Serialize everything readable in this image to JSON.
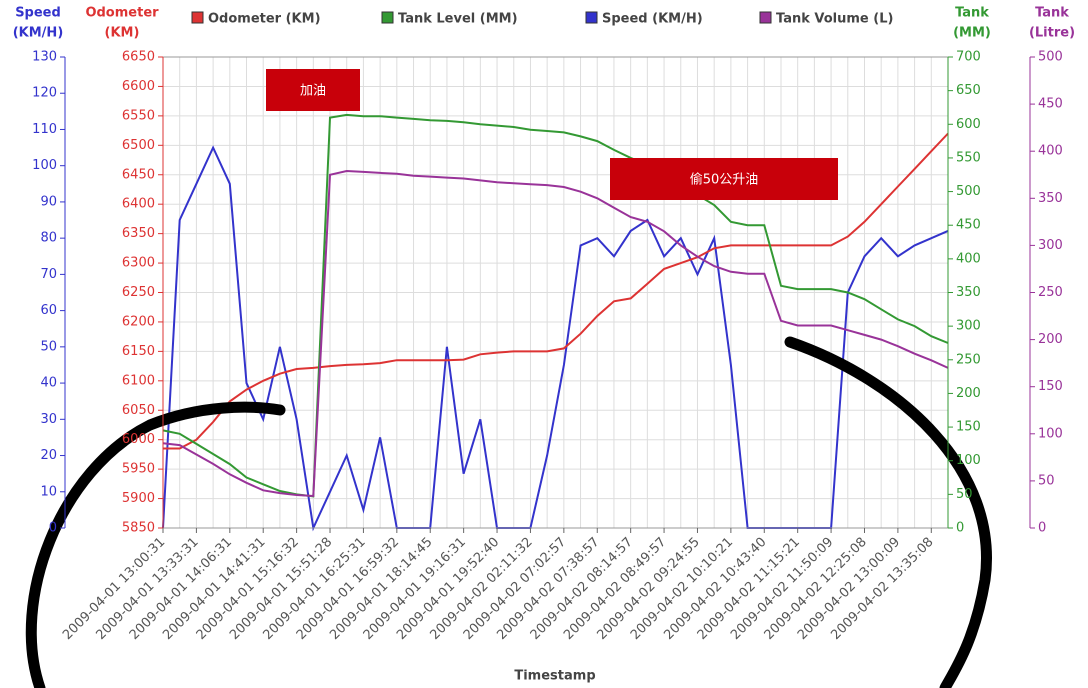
{
  "chart_data": {
    "type": "line",
    "x_label": "Timestamp",
    "grid": true,
    "categories": [
      "2009-04-01 13:00:31",
      null,
      "2009-04-01 13:33:31",
      null,
      "2009-04-01 14:06:31",
      null,
      "2009-04-01 14:41:31",
      null,
      "2009-04-01 15:16:32",
      null,
      "2009-04-01 15:51:28",
      null,
      "2009-04-01 16:25:31",
      null,
      "2009-04-01 16:59:32",
      null,
      "2009-04-01 18:14:45",
      null,
      "2009-04-01 19:16:31",
      null,
      "2009-04-01 19:52:40",
      null,
      "2009-04-02 02:11:32",
      null,
      "2009-04-02 07:02:57",
      null,
      "2009-04-02 07:38:57",
      null,
      "2009-04-02 08:14:57",
      null,
      "2009-04-02 08:49:57",
      null,
      "2009-04-02 09:24:55",
      null,
      "2009-04-02 10:10:21",
      null,
      "2009-04-02 10:43:40",
      null,
      "2009-04-02 11:15:21",
      null,
      "2009-04-02 11:50:09",
      null,
      "2009-04-02 12:25:08",
      null,
      "2009-04-02 13:00:09",
      null,
      "2009-04-02 13:35:08",
      null
    ],
    "axes": [
      {
        "title": [
          "Speed",
          "(KM/H)"
        ],
        "color": "#3333cc",
        "side": "left",
        "lim": [
          0,
          130
        ],
        "ticks": [
          0,
          10,
          20,
          30,
          40,
          50,
          60,
          70,
          80,
          90,
          100,
          110,
          120,
          130
        ]
      },
      {
        "title": [
          "Odometer",
          "(KM)"
        ],
        "color": "#dd3333",
        "side": "left",
        "lim": [
          5850,
          6650
        ],
        "ticks": [
          5850,
          5900,
          5950,
          6000,
          6050,
          6100,
          6150,
          6200,
          6250,
          6300,
          6350,
          6400,
          6450,
          6500,
          6550,
          6600,
          6650
        ]
      },
      {
        "title": [
          "Tank",
          "(MM)"
        ],
        "color": "#339933",
        "side": "right",
        "lim": [
          0,
          700
        ],
        "ticks": [
          0,
          50,
          100,
          150,
          200,
          250,
          300,
          350,
          400,
          450,
          500,
          550,
          600,
          650,
          700
        ]
      },
      {
        "title": [
          "Tank",
          "(Litre)"
        ],
        "color": "#993399",
        "side": "right",
        "lim": [
          0,
          500
        ],
        "ticks": [
          0,
          50,
          100,
          150,
          200,
          250,
          300,
          350,
          400,
          450,
          500
        ]
      }
    ],
    "series": [
      {
        "name": "Odometer (KM)",
        "color": "#dd3333",
        "axis": 1,
        "values": [
          5985,
          5985,
          6000,
          6030,
          6065,
          6085,
          6100,
          6112,
          6120,
          6122,
          6125,
          6127,
          6128,
          6130,
          6135,
          6135,
          6135,
          6135,
          6136,
          6145,
          6148,
          6150,
          6150,
          6150,
          6155,
          6180,
          6210,
          6235,
          6240,
          6265,
          6290,
          6300,
          6310,
          6325,
          6330,
          6330,
          6330,
          6330,
          6330,
          6330,
          6330,
          6345,
          6370,
          6400,
          6430,
          6460,
          6490,
          6520
        ]
      },
      {
        "name": "Tank Level (MM)",
        "color": "#339933",
        "axis": 2,
        "values": [
          145,
          140,
          125,
          110,
          95,
          75,
          65,
          55,
          50,
          47,
          610,
          614,
          612,
          612,
          610,
          608,
          606,
          605,
          603,
          600,
          598,
          596,
          592,
          590,
          588,
          582,
          575,
          562,
          550,
          540,
          520,
          500,
          495,
          480,
          455,
          450,
          450,
          360,
          355,
          355,
          355,
          350,
          340,
          325,
          310,
          300,
          285,
          275
        ]
      },
      {
        "name": "Speed (KM/H)",
        "color": "#3333cc",
        "axis": 0,
        "values": [
          0,
          85,
          95,
          105,
          95,
          40,
          30,
          50,
          30,
          0,
          10,
          20,
          5,
          25,
          0,
          0,
          0,
          50,
          15,
          30,
          0,
          0,
          0,
          20,
          45,
          78,
          80,
          75,
          82,
          85,
          75,
          80,
          70,
          80,
          45,
          0,
          0,
          0,
          0,
          0,
          0,
          65,
          75,
          80,
          75,
          78,
          80,
          82
        ]
      },
      {
        "name": "Tank Volume (L)",
        "color": "#993399",
        "axis": 3,
        "values": [
          90,
          88,
          78,
          68,
          57,
          48,
          40,
          37,
          35,
          34,
          375,
          379,
          378,
          377,
          376,
          374,
          373,
          372,
          371,
          369,
          367,
          366,
          365,
          364,
          362,
          357,
          350,
          340,
          330,
          325,
          315,
          300,
          288,
          278,
          272,
          270,
          270,
          220,
          215,
          215,
          215,
          210,
          205,
          200,
          193,
          185,
          178,
          170
        ]
      }
    ],
    "annotations": [
      {
        "text": "加油"
      },
      {
        "text": "偷50公升油"
      }
    ]
  }
}
